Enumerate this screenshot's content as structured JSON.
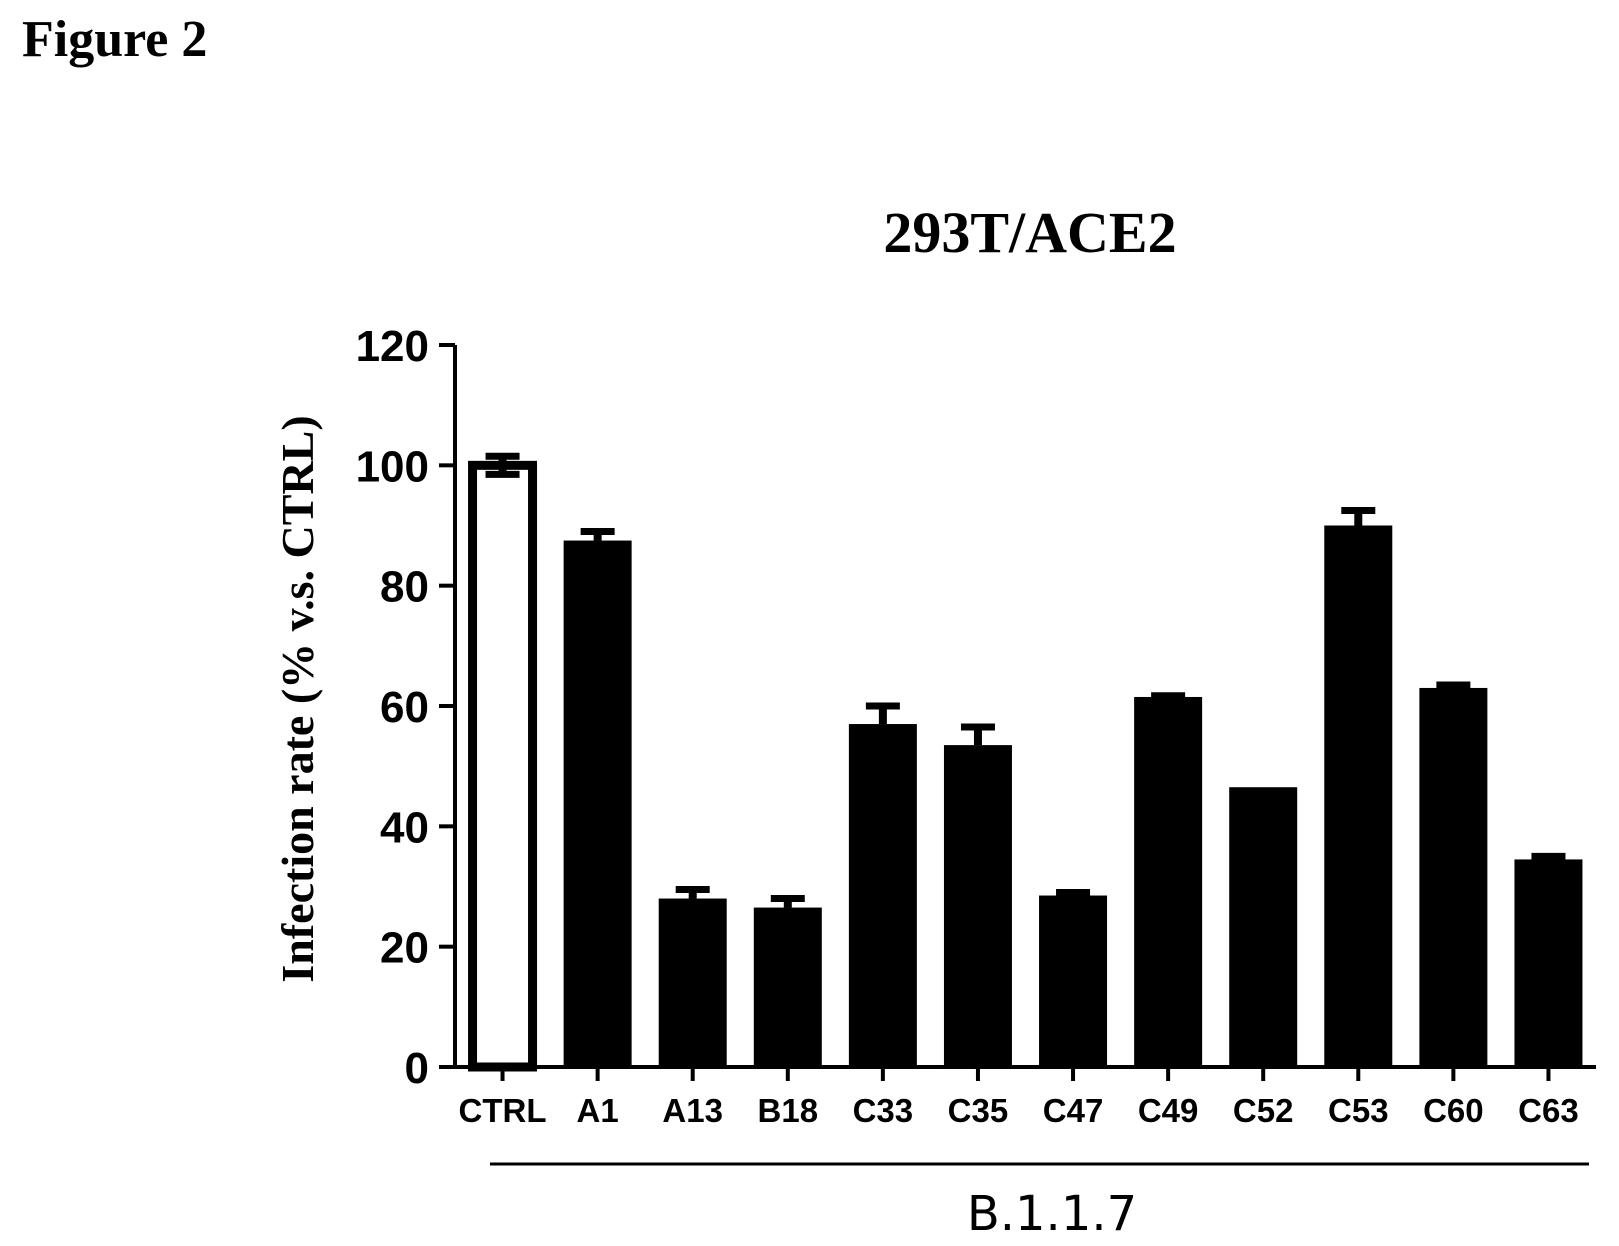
{
  "figure_label": "Figure 2",
  "colors": {
    "bar_fill": "#000000",
    "control_fill": "#ffffff",
    "axis": "#000000"
  },
  "chart_data": {
    "type": "bar",
    "title": "293T/ACE2",
    "ylabel": "Infection rate (% v.s. CTRL)",
    "xlabel": "",
    "ylim": [
      0,
      120
    ],
    "yticks": [
      0,
      20,
      40,
      60,
      80,
      100,
      120
    ],
    "grid": false,
    "categories": [
      "CTRL",
      "A1",
      "A13",
      "B18",
      "C33",
      "C35",
      "C47",
      "C49",
      "C52",
      "C53",
      "C60",
      "C63"
    ],
    "values": [
      100,
      87.5,
      28,
      26.5,
      57,
      53.5,
      28.5,
      61.5,
      46.5,
      90,
      63,
      34.5
    ],
    "errors": [
      1.5,
      1.5,
      1.5,
      1.5,
      3,
      3,
      0.5,
      0.2,
      0,
      2.5,
      0.5,
      0.5
    ],
    "control_category": "CTRL",
    "group_label": "B.1.1.7",
    "group_categories": [
      "CTRL",
      "A1",
      "A13",
      "B18",
      "C33",
      "C35",
      "C47",
      "C49",
      "C52",
      "C53",
      "C60",
      "C63"
    ]
  }
}
